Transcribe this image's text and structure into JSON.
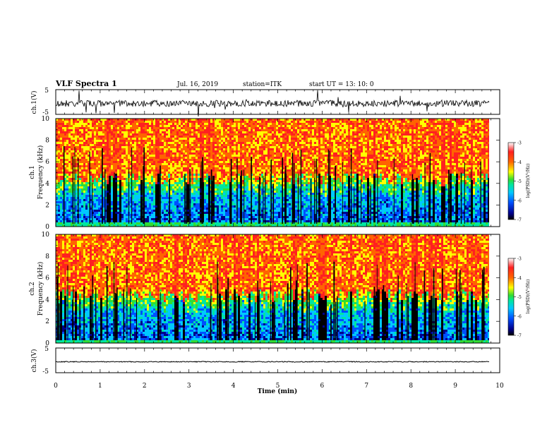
{
  "header": {
    "title": "VLF Spectra  1",
    "date": "Jul. 16, 2019",
    "station": "station=ITK",
    "start_ut": "start UT =  13: 10: 0"
  },
  "colors": {
    "trace": "#000000",
    "colormap": [
      "#000000",
      "#00008b",
      "#0050ff",
      "#00c8ff",
      "#00e6a0",
      "#32dc32",
      "#ffff00",
      "#ff6400",
      "#ff2020",
      "#ffffff"
    ]
  },
  "chart_data": [
    {
      "type": "line",
      "panel": "ch1",
      "ylabel": "ch.1(V)",
      "ylim": [
        -5,
        5
      ],
      "yticks": [
        "5",
        "-5"
      ]
    },
    {
      "type": "heatmap",
      "panel": "ch1-spectrogram",
      "ylabel_lines": [
        "ch.1",
        "Frequency (kHz)"
      ],
      "ylim": [
        0,
        10
      ],
      "yticks": [
        "0",
        "2",
        "4",
        "6",
        "8",
        "10"
      ],
      "colorbar": {
        "label": "log(PSD)(V²/Hz)",
        "ticks": [
          "-3",
          "-4",
          "-5",
          "-6",
          "-7"
        ],
        "range": [
          -7,
          -3
        ]
      }
    },
    {
      "type": "heatmap",
      "panel": "ch2-spectrogram",
      "ylabel_lines": [
        "ch.2",
        "Frequency (kHz)"
      ],
      "ylim": [
        0,
        10
      ],
      "yticks": [
        "0",
        "2",
        "4",
        "6",
        "8",
        "10"
      ],
      "colorbar": {
        "label": "log(PSD)(V²/Hz)",
        "ticks": [
          "-3",
          "-4",
          "-5",
          "-6",
          "-7"
        ],
        "range": [
          -7,
          -3
        ]
      }
    },
    {
      "type": "line",
      "panel": "ch3",
      "ylabel": "ch.3(V)",
      "ylim": [
        -5,
        5
      ],
      "yticks": [
        "5",
        "-5"
      ]
    }
  ],
  "xaxis": {
    "label": "Time (min)",
    "range": [
      0,
      10
    ],
    "ticks": [
      "0",
      "1",
      "2",
      "3",
      "4",
      "5",
      "6",
      "7",
      "8",
      "9",
      "10"
    ]
  }
}
